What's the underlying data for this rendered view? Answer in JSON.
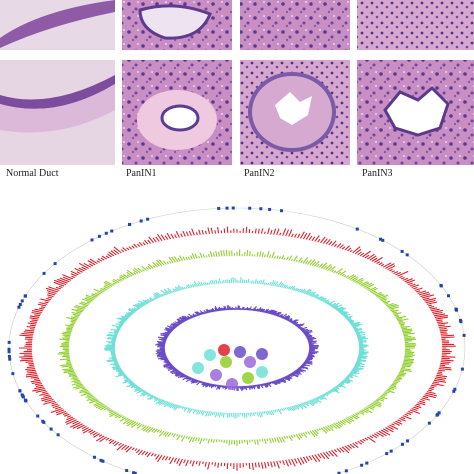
{
  "figure": {
    "panels": [
      {
        "label": "Normal Duct"
      },
      {
        "label": "PanIN1"
      },
      {
        "label": "PanIN2"
      },
      {
        "label": "PanIN3"
      }
    ]
  }
}
